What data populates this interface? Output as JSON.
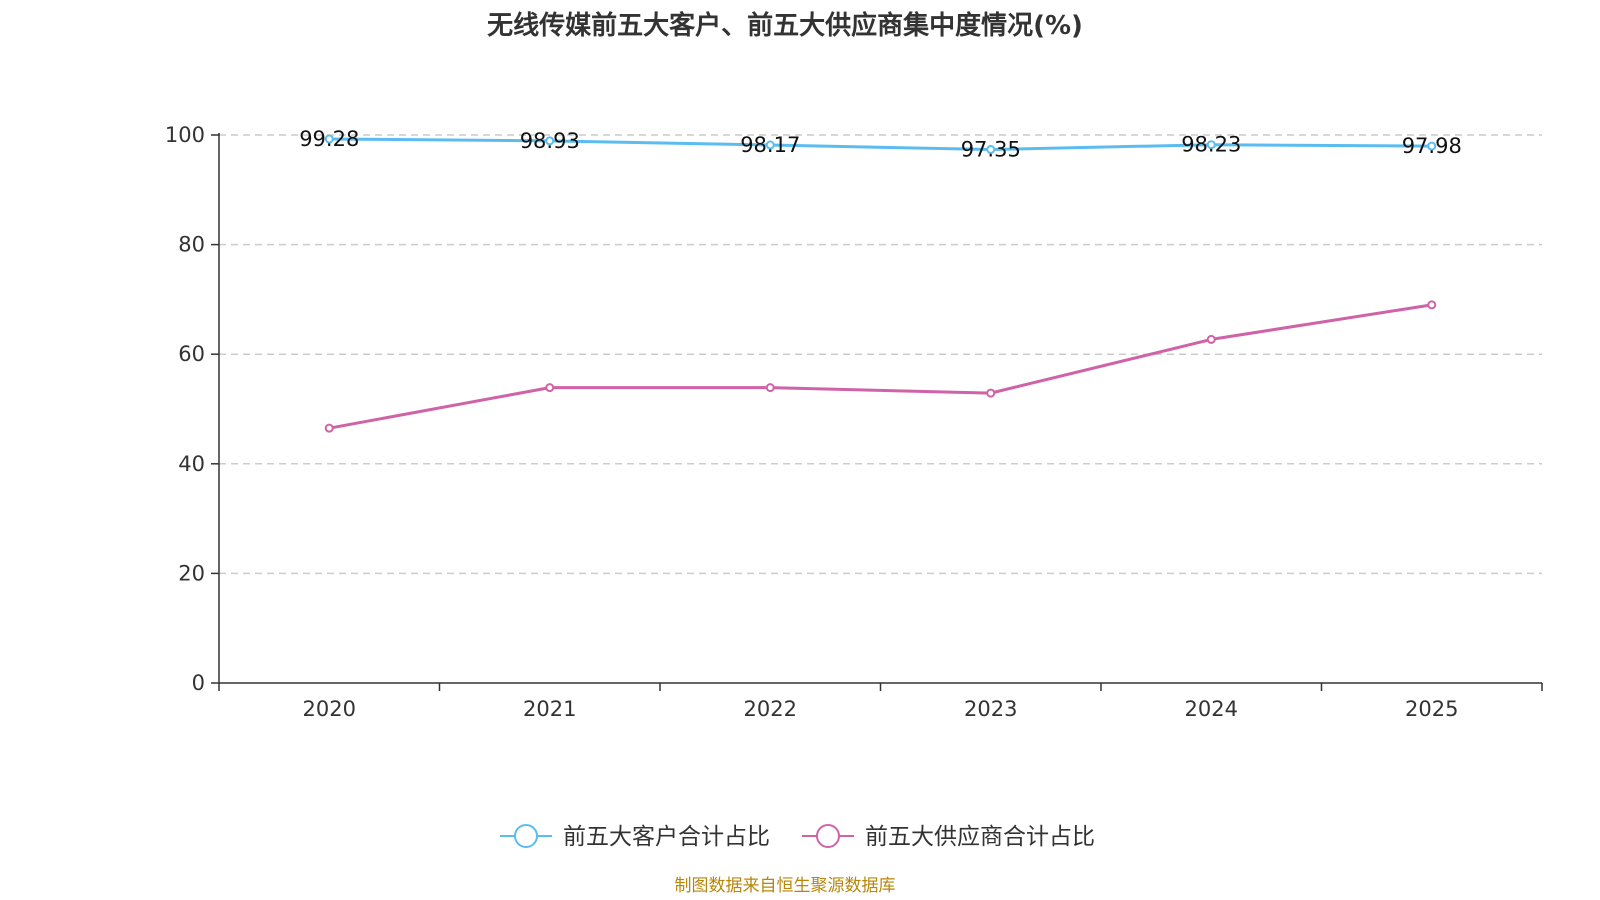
{
  "chart_data": {
    "type": "line",
    "title": "无线传媒前五大客户、前五大供应商集中度情况(%)",
    "categories": [
      "2020",
      "2021",
      "2022",
      "2023",
      "2024",
      "2025"
    ],
    "ylim": [
      0,
      100
    ],
    "yticks": [
      "0",
      "20",
      "40",
      "60",
      "80",
      "100"
    ],
    "grid": true,
    "legend_position": "bottom",
    "series": [
      {
        "name": "前五大客户合计占比",
        "color": "#5bbcef",
        "values": [
          99.28,
          98.93,
          98.17,
          97.35,
          98.23,
          97.98
        ],
        "labels": [
          "99.28",
          "98.93",
          "98.17",
          "97.35",
          "98.23",
          "97.98"
        ]
      },
      {
        "name": "前五大供应商合计占比",
        "color": "#d062a8",
        "values": [
          46.5,
          53.9,
          53.9,
          52.9,
          62.7,
          69.0
        ]
      }
    ],
    "source": "制图数据来自恒生聚源数据库"
  }
}
